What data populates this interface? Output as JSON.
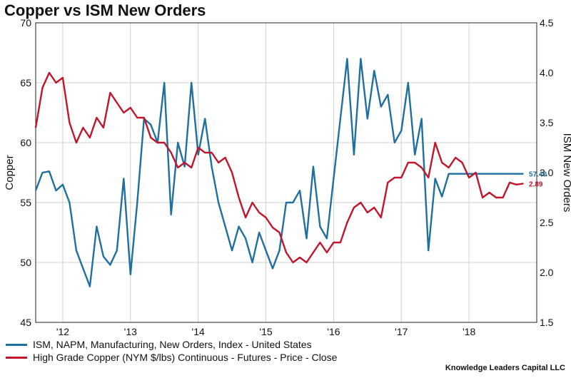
{
  "colors": {
    "ism": "#1f6f9f",
    "copper": "#c0152a",
    "grid": "#d0d0d0",
    "axis": "#222222"
  },
  "chart_data": {
    "type": "line",
    "title": "Copper vs ISM New Orders",
    "ylabel_left": "Copper",
    "ylabel_right": "ISM New Orders",
    "ylim_left": [
      45,
      70
    ],
    "ylim_right": [
      1.5,
      4.5
    ],
    "left_ticks": [
      "70",
      "65",
      "60",
      "55",
      "50",
      "45"
    ],
    "right_ticks": [
      "4.5",
      "4.0",
      "3.5",
      "3.0",
      "2.5",
      "2.0",
      "1.5"
    ],
    "xlim": [
      2011.6,
      2019.0
    ],
    "x_ticks": [
      "'12",
      "'13",
      "'14",
      "'15",
      "'16",
      "'17",
      "'18"
    ],
    "x_tick_values": [
      2012,
      2013,
      2014,
      2015,
      2016,
      2017,
      2018
    ],
    "series": [
      {
        "name": "ISM, NAPM, Manufacturing, New Orders, Index - United States",
        "axis": "left",
        "end_label": "57.40",
        "x": [
          2011.6,
          2011.7,
          2011.8,
          2011.9,
          2012.0,
          2012.1,
          2012.2,
          2012.3,
          2012.4,
          2012.5,
          2012.6,
          2012.7,
          2012.8,
          2012.9,
          2013.0,
          2013.1,
          2013.2,
          2013.3,
          2013.4,
          2013.5,
          2013.6,
          2013.7,
          2013.8,
          2013.9,
          2014.0,
          2014.1,
          2014.2,
          2014.3,
          2014.4,
          2014.5,
          2014.6,
          2014.7,
          2014.8,
          2014.9,
          2015.0,
          2015.1,
          2015.2,
          2015.3,
          2015.4,
          2015.5,
          2015.6,
          2015.7,
          2015.8,
          2015.9,
          2016.0,
          2016.1,
          2016.2,
          2016.3,
          2016.4,
          2016.5,
          2016.6,
          2016.7,
          2016.8,
          2016.9,
          2017.0,
          2017.1,
          2017.2,
          2017.3,
          2017.4,
          2017.5,
          2017.6,
          2017.7,
          2017.8,
          2017.9,
          2018.0,
          2018.1,
          2018.2,
          2018.3,
          2018.4,
          2018.5,
          2018.6,
          2018.7,
          2018.8
        ],
        "values": [
          56.0,
          57.5,
          57.6,
          56.0,
          56.5,
          55.0,
          51.0,
          49.5,
          48.0,
          53.0,
          50.5,
          49.8,
          51.0,
          57.0,
          49.0,
          55.0,
          62.0,
          61.5,
          60.0,
          65.0,
          54.0,
          60.0,
          58.0,
          65.0,
          59.0,
          62.0,
          58.0,
          55.0,
          53.0,
          51.0,
          53.0,
          52.0,
          50.0,
          52.5,
          51.0,
          49.5,
          51.0,
          55.0,
          55.0,
          56.0,
          52.0,
          58.0,
          53.0,
          52.0,
          57.0,
          62.0,
          67.0,
          59.0,
          67.0,
          62.0,
          66.0,
          63.0,
          64.0,
          60.0,
          61.0,
          65.0,
          59.0,
          62.0,
          51.0,
          57.0,
          55.5,
          57.4,
          57.4,
          57.4,
          57.4,
          57.4,
          57.4,
          57.4,
          57.4,
          57.4,
          57.4,
          57.4,
          57.4
        ]
      },
      {
        "name": "High Grade Copper (NYM $/lbs) Continuous - Futures - Price - Close",
        "axis": "right",
        "end_label": "2.89",
        "x": [
          2011.6,
          2011.7,
          2011.8,
          2011.9,
          2012.0,
          2012.1,
          2012.2,
          2012.3,
          2012.4,
          2012.5,
          2012.6,
          2012.7,
          2012.8,
          2012.9,
          2013.0,
          2013.1,
          2013.2,
          2013.3,
          2013.4,
          2013.5,
          2013.6,
          2013.7,
          2013.8,
          2013.9,
          2014.0,
          2014.1,
          2014.2,
          2014.3,
          2014.4,
          2014.5,
          2014.6,
          2014.7,
          2014.8,
          2014.9,
          2015.0,
          2015.1,
          2015.2,
          2015.3,
          2015.4,
          2015.5,
          2015.6,
          2015.7,
          2015.8,
          2015.9,
          2016.0,
          2016.1,
          2016.2,
          2016.3,
          2016.4,
          2016.5,
          2016.6,
          2016.7,
          2016.8,
          2016.9,
          2017.0,
          2017.1,
          2017.2,
          2017.3,
          2017.4,
          2017.5,
          2017.6,
          2017.7,
          2017.8,
          2017.9,
          2018.0,
          2018.1,
          2018.2,
          2018.3,
          2018.4,
          2018.5,
          2018.6,
          2018.7,
          2018.8
        ],
        "values": [
          3.45,
          3.85,
          4.0,
          3.9,
          3.95,
          3.5,
          3.3,
          3.45,
          3.35,
          3.55,
          3.45,
          3.8,
          3.7,
          3.6,
          3.65,
          3.55,
          3.55,
          3.35,
          3.3,
          3.3,
          3.2,
          3.05,
          3.1,
          3.05,
          3.25,
          3.2,
          3.2,
          3.1,
          3.15,
          3.0,
          2.75,
          2.55,
          2.7,
          2.6,
          2.55,
          2.45,
          2.4,
          2.2,
          2.1,
          2.15,
          2.1,
          2.2,
          2.3,
          2.2,
          2.3,
          2.3,
          2.5,
          2.65,
          2.7,
          2.6,
          2.65,
          2.55,
          2.9,
          2.95,
          2.95,
          3.1,
          3.1,
          3.05,
          2.95,
          3.3,
          3.1,
          3.05,
          3.15,
          3.1,
          2.95,
          3.0,
          2.75,
          2.8,
          2.75,
          2.75,
          2.9,
          2.88,
          2.89
        ]
      }
    ]
  },
  "legend": {
    "ism_label": "ISM, NAPM, Manufacturing, New Orders, Index - United States",
    "copper_label": "High Grade Copper (NYM $/lbs) Continuous - Futures - Price - Close"
  },
  "footer": "Knowledge Leaders Capital LLC"
}
